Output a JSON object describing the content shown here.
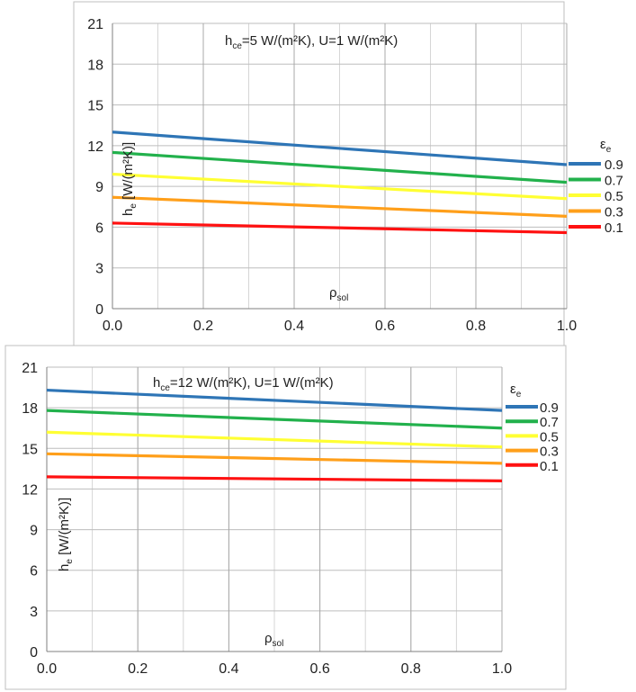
{
  "chart_data": [
    {
      "type": "line",
      "title": "h",
      "title_sub": "ce",
      "title_rest": "=5 W/(m²K), U=1 W/(m²K)",
      "ylabel_main": "h",
      "ylabel_sub": "e",
      "ylabel_rest": " [W/(m²K)]",
      "xlabel_main": "ρ",
      "xlabel_sub": "sol",
      "legend_title_main": "ε",
      "legend_title_sub": "e",
      "legend_position": "right",
      "grid": true,
      "xlim": [
        0,
        1
      ],
      "ylim": [
        0,
        21
      ],
      "x_ticks": [
        "0.0",
        "0.2",
        "0.4",
        "0.6",
        "0.8",
        "1.0"
      ],
      "y_ticks": [
        "0",
        "3",
        "6",
        "9",
        "12",
        "15",
        "18",
        "21"
      ],
      "x": [
        0,
        1
      ],
      "series": [
        {
          "name": "0.9",
          "color": "#2e75b6",
          "values": [
            13.0,
            10.6
          ]
        },
        {
          "name": "0.7",
          "color": "#22b14c",
          "values": [
            11.5,
            9.3
          ]
        },
        {
          "name": "0.5",
          "color": "#ffff33",
          "values": [
            9.9,
            8.1
          ]
        },
        {
          "name": "0.3",
          "color": "#ff9f1a",
          "values": [
            8.2,
            6.8
          ]
        },
        {
          "name": "0.1",
          "color": "#ff1111",
          "values": [
            6.3,
            5.6
          ]
        }
      ]
    },
    {
      "type": "line",
      "title": "h",
      "title_sub": "ce",
      "title_rest": "=12 W/(m²K), U=1 W/(m²K)",
      "ylabel_main": "h",
      "ylabel_sub": "e",
      "ylabel_rest": " [W/(m²K)]",
      "xlabel_main": "ρ",
      "xlabel_sub": "sol",
      "legend_title_main": "ε",
      "legend_title_sub": "e",
      "legend_position": "right",
      "grid": true,
      "xlim": [
        0,
        1
      ],
      "ylim": [
        0,
        21
      ],
      "x_ticks": [
        "0.0",
        "0.2",
        "0.4",
        "0.6",
        "0.8",
        "1.0"
      ],
      "y_ticks": [
        "0",
        "3",
        "6",
        "9",
        "12",
        "15",
        "18",
        "21"
      ],
      "x": [
        0,
        1
      ],
      "series": [
        {
          "name": "0.9",
          "color": "#2e75b6",
          "values": [
            19.3,
            17.8
          ]
        },
        {
          "name": "0.7",
          "color": "#22b14c",
          "values": [
            17.8,
            16.5
          ]
        },
        {
          "name": "0.5",
          "color": "#ffff33",
          "values": [
            16.2,
            15.1
          ]
        },
        {
          "name": "0.3",
          "color": "#ff9f1a",
          "values": [
            14.6,
            13.9
          ]
        },
        {
          "name": "0.1",
          "color": "#ff1111",
          "values": [
            12.9,
            12.6
          ]
        }
      ]
    }
  ]
}
